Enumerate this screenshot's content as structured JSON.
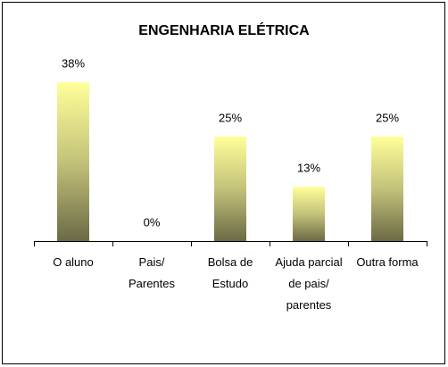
{
  "chart_data": {
    "type": "bar",
    "title": "ENGENHARIA ELÉTRICA",
    "categories": [
      "O aluno",
      "Pais/ Parentes",
      "Bolsa de Estudo",
      "Ajuda parcial de pais/ parentes",
      "Outra forma"
    ],
    "values": [
      38,
      0,
      25,
      13,
      25
    ],
    "value_labels": [
      "38%",
      "0%",
      "25%",
      "13%",
      "25%"
    ]
  }
}
